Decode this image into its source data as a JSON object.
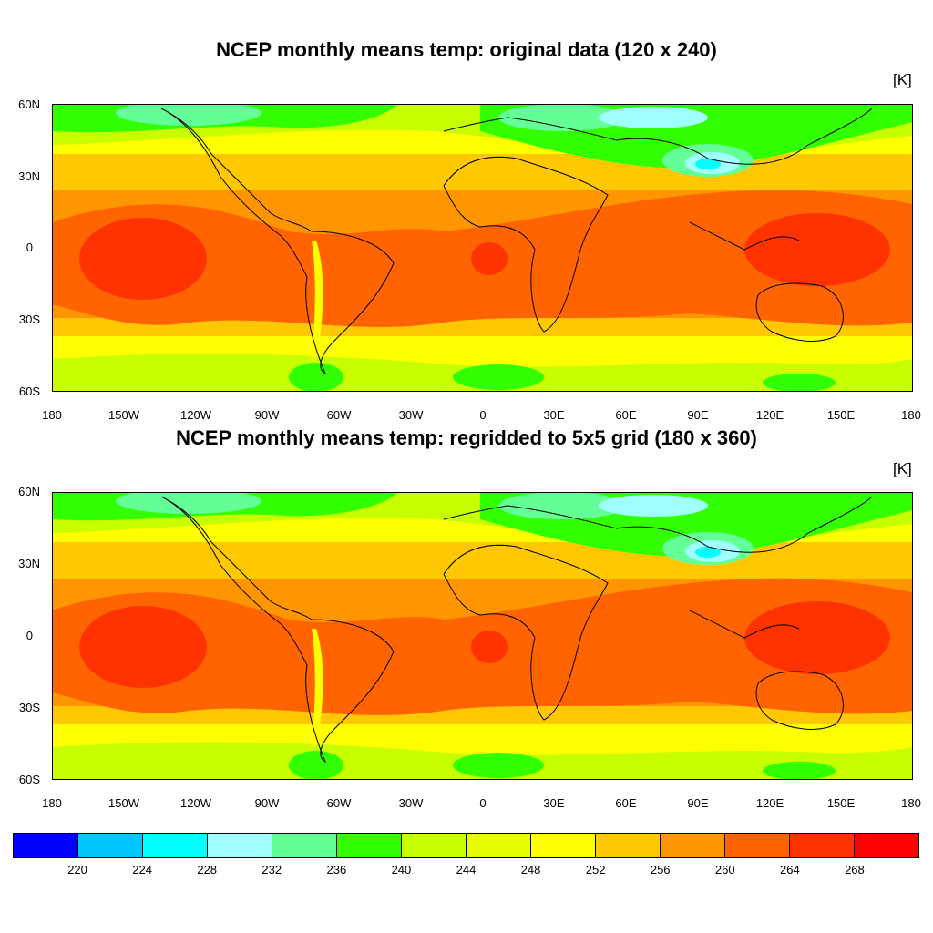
{
  "panels": [
    {
      "title": "NCEP monthly means temp: original data (120 x 240)",
      "units": "[K]",
      "lat_ticks": [
        "60N",
        "30N",
        "0",
        "30S",
        "60S"
      ],
      "lon_ticks": [
        "180",
        "150W",
        "120W",
        "90W",
        "60W",
        "30W",
        "0",
        "30E",
        "60E",
        "90E",
        "120E",
        "150E",
        "180"
      ]
    },
    {
      "title": "NCEP monthly means temp: regridded to 5x5 grid (180 x 360)",
      "units": "[K]",
      "lat_ticks": [
        "60N",
        "30N",
        "0",
        "30S",
        "60S"
      ],
      "lon_ticks": [
        "180",
        "150W",
        "120W",
        "90W",
        "60W",
        "30W",
        "0",
        "30E",
        "60E",
        "90E",
        "120E",
        "150E",
        "180"
      ]
    }
  ],
  "colorbar": {
    "labels": [
      "220",
      "224",
      "228",
      "232",
      "236",
      "240",
      "244",
      "248",
      "252",
      "256",
      "260",
      "264",
      "268"
    ],
    "colors": [
      "#0000ff",
      "#00c8ff",
      "#00ffff",
      "#a0ffff",
      "#64ff96",
      "#32ff00",
      "#c8ff00",
      "#e6ff00",
      "#ffff00",
      "#ffc800",
      "#ff9600",
      "#ff6400",
      "#ff3200",
      "#ff0000"
    ]
  }
}
